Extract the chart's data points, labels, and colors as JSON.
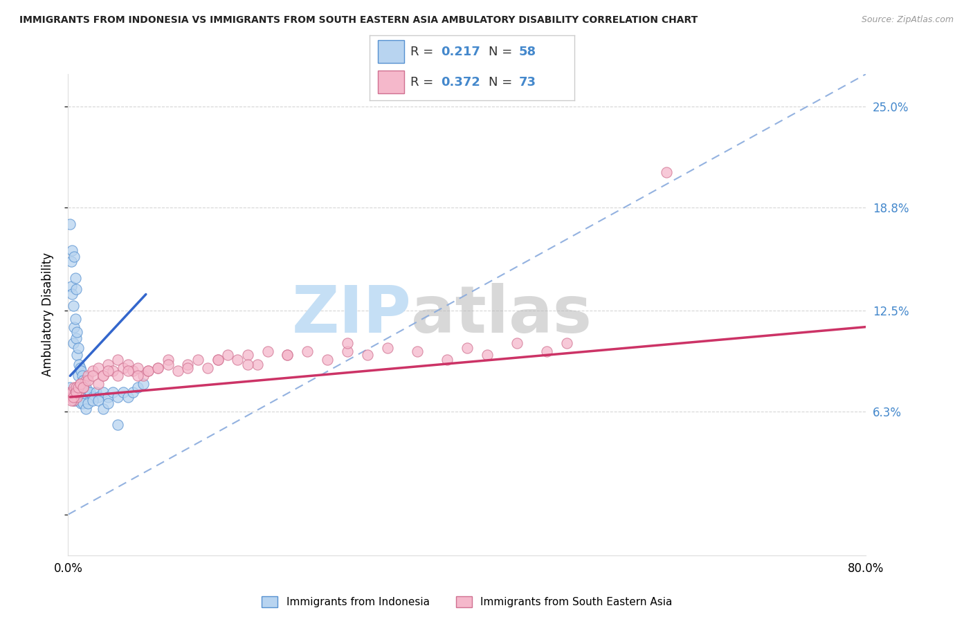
{
  "title": "IMMIGRANTS FROM INDONESIA VS IMMIGRANTS FROM SOUTH EASTERN ASIA AMBULATORY DISABILITY CORRELATION CHART",
  "source": "Source: ZipAtlas.com",
  "ylabel": "Ambulatory Disability",
  "ytick_vals": [
    0.0,
    6.3,
    12.5,
    18.8,
    25.0
  ],
  "ytick_labels": [
    "",
    "6.3%",
    "12.5%",
    "18.8%",
    "25.0%"
  ],
  "xtick_vals": [
    0,
    80
  ],
  "xtick_labels": [
    "0.0%",
    "80.0%"
  ],
  "legend_r1": "0.217",
  "legend_n1": "58",
  "legend_r2": "0.372",
  "legend_n2": "73",
  "blue_fill": "#b8d4f0",
  "blue_edge": "#5590d0",
  "blue_line": "#3366cc",
  "pink_fill": "#f5b8cb",
  "pink_edge": "#d07090",
  "pink_line": "#cc3366",
  "ref_line_color": "#88aadd",
  "tick_color": "#4488cc",
  "watermark_zip_color": "#c5dff5",
  "watermark_atlas_color": "#b8b8b8",
  "xlim": [
    0,
    80
  ],
  "ylim": [
    -2.5,
    27
  ],
  "blue_scatter_x": [
    0.2,
    0.3,
    0.3,
    0.4,
    0.4,
    0.5,
    0.5,
    0.6,
    0.6,
    0.7,
    0.7,
    0.8,
    0.8,
    0.9,
    0.9,
    1.0,
    1.0,
    1.1,
    1.2,
    1.3,
    1.4,
    1.5,
    1.6,
    1.8,
    2.0,
    2.2,
    2.5,
    2.8,
    3.0,
    3.5,
    4.0,
    4.5,
    5.0,
    5.5,
    6.0,
    6.5,
    7.0,
    7.5,
    0.2,
    0.3,
    0.4,
    0.5,
    0.6,
    0.7,
    0.8,
    0.9,
    1.0,
    1.1,
    1.2,
    1.3,
    1.5,
    1.8,
    2.0,
    2.5,
    3.0,
    3.5,
    4.0,
    5.0
  ],
  "blue_scatter_y": [
    17.8,
    15.5,
    14.0,
    16.2,
    13.5,
    12.8,
    10.5,
    15.8,
    11.5,
    14.5,
    12.0,
    13.8,
    10.8,
    11.2,
    9.8,
    10.2,
    8.5,
    9.2,
    9.0,
    8.8,
    8.5,
    8.2,
    8.0,
    7.8,
    7.5,
    7.5,
    7.2,
    7.5,
    7.2,
    7.5,
    7.2,
    7.5,
    7.2,
    7.5,
    7.2,
    7.5,
    7.8,
    8.0,
    7.8,
    7.5,
    7.5,
    7.2,
    7.0,
    7.2,
    7.5,
    7.0,
    7.2,
    7.0,
    7.2,
    6.8,
    6.8,
    6.5,
    6.8,
    7.0,
    7.0,
    6.5,
    6.8,
    5.5
  ],
  "pink_scatter_x": [
    0.2,
    0.3,
    0.4,
    0.5,
    0.6,
    0.7,
    0.8,
    0.9,
    1.0,
    1.2,
    1.5,
    1.8,
    2.0,
    2.5,
    3.0,
    3.5,
    4.0,
    4.5,
    5.0,
    5.5,
    6.0,
    6.5,
    7.0,
    7.5,
    8.0,
    9.0,
    10.0,
    11.0,
    12.0,
    13.0,
    14.0,
    15.0,
    16.0,
    17.0,
    18.0,
    19.0,
    20.0,
    22.0,
    24.0,
    26.0,
    28.0,
    30.0,
    32.0,
    35.0,
    38.0,
    40.0,
    42.0,
    45.0,
    48.0,
    50.0,
    0.3,
    0.5,
    0.8,
    1.0,
    1.2,
    1.5,
    2.0,
    2.5,
    3.0,
    3.5,
    4.0,
    5.0,
    6.0,
    7.0,
    8.0,
    9.0,
    10.0,
    12.0,
    15.0,
    18.0,
    22.0,
    28.0,
    60.0
  ],
  "pink_scatter_y": [
    7.5,
    7.2,
    7.5,
    7.0,
    7.8,
    7.5,
    7.8,
    7.2,
    7.5,
    8.0,
    7.8,
    8.2,
    8.5,
    8.8,
    9.0,
    8.5,
    9.2,
    8.8,
    9.5,
    9.0,
    9.2,
    8.8,
    9.0,
    8.5,
    8.8,
    9.0,
    9.5,
    8.8,
    9.2,
    9.5,
    9.0,
    9.5,
    9.8,
    9.5,
    9.8,
    9.2,
    10.0,
    9.8,
    10.0,
    9.5,
    10.0,
    9.8,
    10.2,
    10.0,
    9.5,
    10.2,
    9.8,
    10.5,
    10.0,
    10.5,
    7.0,
    7.2,
    7.5,
    7.8,
    8.0,
    7.8,
    8.2,
    8.5,
    8.0,
    8.5,
    8.8,
    8.5,
    8.8,
    8.5,
    8.8,
    9.0,
    9.2,
    9.0,
    9.5,
    9.2,
    9.8,
    10.5,
    21.0
  ],
  "blue_trendline_x0": 0.2,
  "blue_trendline_x1": 7.8,
  "blue_trendline_y0": 8.5,
  "blue_trendline_y1": 13.5,
  "pink_trendline_x0": 0.2,
  "pink_trendline_x1": 80.0,
  "pink_trendline_y0": 7.2,
  "pink_trendline_y1": 11.5
}
